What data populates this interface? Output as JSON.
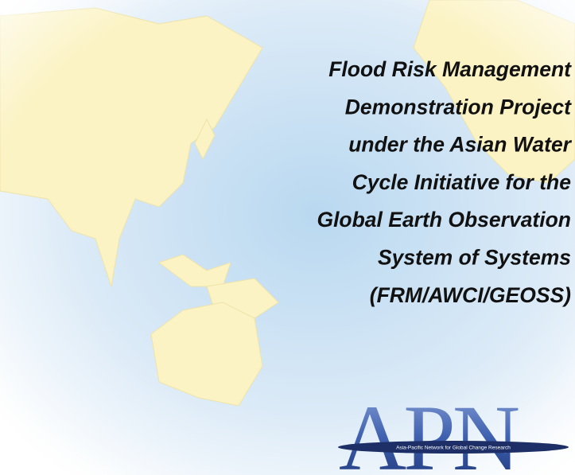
{
  "title_lines": [
    "Flood Risk Management",
    "Demonstration Project",
    "under the Asian Water",
    "Cycle Initiative for the",
    "Global Earth Observation",
    "System of Systems",
    "(FRM/AWCI/GEOSS)"
  ],
  "logo": {
    "acronym": "APN",
    "name": "Asia-Pacific Network for Global Change Research"
  }
}
